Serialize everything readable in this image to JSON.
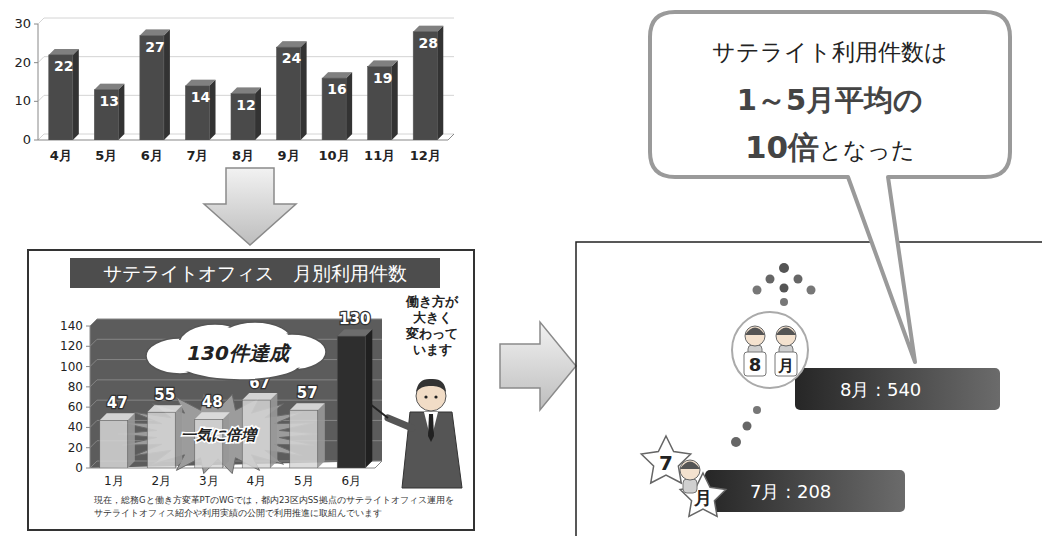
{
  "chart_data": [
    {
      "type": "bar",
      "categories": [
        "4月",
        "5月",
        "6月",
        "7月",
        "8月",
        "9月",
        "10月",
        "11月",
        "12月"
      ],
      "values": [
        22,
        13,
        27,
        14,
        12,
        24,
        16,
        19,
        28
      ],
      "color": "#4a4a4a",
      "ylim": [
        0,
        30
      ],
      "yticks": [
        0,
        10,
        20,
        30
      ],
      "grid": true,
      "data_labels": true
    },
    {
      "type": "bar",
      "title": "サテライトオフィス　月別利用件数",
      "categories": [
        "1月",
        "2月",
        "3月",
        "4月",
        "5月",
        "6月"
      ],
      "values": [
        47,
        55,
        48,
        67,
        57,
        130
      ],
      "colors": [
        "#d6d6d6",
        "#d6d6d6",
        "#d6d6d6",
        "#d6d6d6",
        "#d6d6d6",
        "#2e2e2e"
      ],
      "ylim": [
        0,
        140
      ],
      "yticks": [
        0,
        20,
        40,
        60,
        80,
        100,
        120,
        140
      ],
      "grid": true,
      "data_labels": true,
      "annotations": {
        "cloud": "130件達成",
        "burst": "一気に倍増",
        "speech": [
          "働き方が",
          "大きく",
          "変わって",
          "います"
        ],
        "footnote": [
          "現在，総務Gと働き方変革PTのWGでは，都内23区内SS拠点のサテライトオフィス運用を",
          "サテライトオフィス紹介や利用実績の公開で利用推進に取組んでいます"
        ]
      }
    }
  ],
  "milestones": [
    {
      "month": "7月",
      "value": 208,
      "icon_number": "7",
      "icon_char": "月"
    },
    {
      "month": "8月",
      "value": 540,
      "icon_number": "8",
      "icon_char": "月"
    }
  ],
  "separator": " : ",
  "callout": {
    "line1": "サテライト利用件数は",
    "line2": "1～5月平均の",
    "emphasis": "10倍",
    "line3_rest": "となった"
  }
}
